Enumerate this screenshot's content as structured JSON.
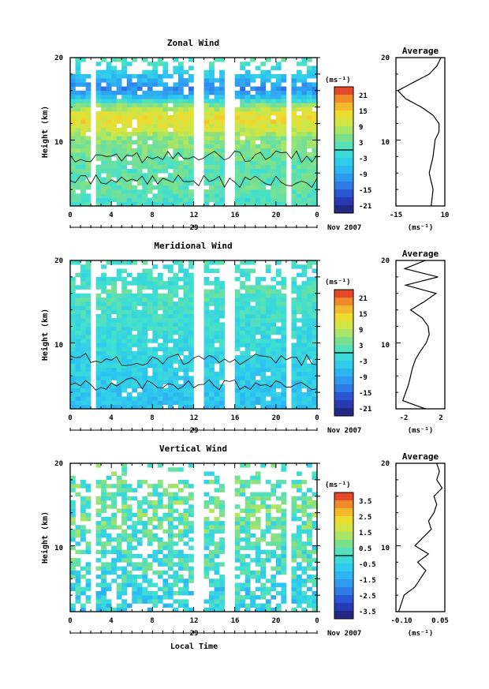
{
  "figure": {
    "date_label": "Nov 2007",
    "x_axis_title": "Local Time",
    "day_label": "29",
    "colorbar_unit": "(ms⁻¹)",
    "average_title": "Average",
    "average_unit": "(ms⁻¹)"
  },
  "panels": [
    {
      "title": "Zonal Wind",
      "ylabel": "Height (km)",
      "yticks": [
        "20",
        "10"
      ],
      "xticks": [
        "0",
        "4",
        "8",
        "12",
        "16",
        "20",
        "0"
      ],
      "colorbar_ticks": [
        "21",
        "15",
        "9",
        "3",
        "-3",
        "-9",
        "-15",
        "-21"
      ],
      "colorbar_range": [
        -24,
        24
      ],
      "avg_xticks": [
        "-15",
        "10"
      ]
    },
    {
      "title": "Meridional Wind",
      "ylabel": "Height (km)",
      "yticks": [
        "20",
        "10"
      ],
      "xticks": [
        "0",
        "4",
        "8",
        "12",
        "16",
        "20",
        "0"
      ],
      "colorbar_ticks": [
        "21",
        "15",
        "9",
        "3",
        "-3",
        "-9",
        "-15",
        "-21"
      ],
      "colorbar_range": [
        -24,
        24
      ],
      "avg_xticks": [
        "-2",
        "2"
      ]
    },
    {
      "title": "Vertical Wind",
      "ylabel": "Height (km)",
      "yticks": [
        "20",
        "10"
      ],
      "xticks": [
        "0",
        "4",
        "8",
        "12",
        "16",
        "20",
        "0"
      ],
      "colorbar_ticks": [
        "3.5",
        "2.5",
        "1.5",
        "0.5",
        "-0.5",
        "-1.5",
        "-2.5",
        "-3.5"
      ],
      "colorbar_range": [
        -4,
        4
      ],
      "avg_xticks": [
        "-0.10",
        "0.05"
      ]
    }
  ],
  "chart_data": [
    {
      "type": "heatmap",
      "title": "Zonal Wind",
      "xlabel": "",
      "ylabel": "Height (km)",
      "xlim": [
        0,
        24
      ],
      "ylim": [
        2,
        20
      ],
      "x_step_h": 0.5,
      "y_step_km": 0.5,
      "gaps_local_time_h": [
        2.0,
        12.0,
        12.5,
        15.0,
        15.5,
        21.0
      ],
      "profile_km": [
        2,
        4,
        6,
        8,
        10,
        11,
        12,
        13,
        14,
        15,
        16,
        17,
        18,
        19,
        20
      ],
      "profile_ms": [
        0,
        3,
        2,
        4,
        6,
        10,
        13,
        12,
        5,
        -6,
        -12,
        -8,
        -4,
        0,
        2
      ],
      "average": {
        "x_range": [
          -15,
          10
        ],
        "km": [
          2,
          4,
          6,
          8,
          10,
          11,
          12,
          13,
          14,
          15,
          16,
          17,
          18,
          19,
          20
        ],
        "ms": [
          3,
          4,
          2,
          4,
          5,
          7,
          7,
          4,
          -2,
          -10,
          -14,
          -6,
          2,
          6,
          8
        ]
      }
    },
    {
      "type": "heatmap",
      "title": "Meridional Wind",
      "xlabel": "",
      "ylabel": "Height (km)",
      "xlim": [
        0,
        24
      ],
      "ylim": [
        2,
        20
      ],
      "x_step_h": 0.5,
      "y_step_km": 0.5,
      "gaps_local_time_h": [
        2.0,
        12.0,
        12.5,
        15.0,
        15.5,
        21.0
      ],
      "profile_km": [
        2,
        4,
        6,
        8,
        10,
        12,
        14,
        15,
        16,
        17,
        18,
        19,
        20
      ],
      "profile_ms": [
        -6,
        -5,
        -4,
        -3,
        -2,
        -1,
        0,
        1,
        2,
        0,
        -1,
        1,
        0
      ],
      "average": {
        "x_range": [
          -2.5,
          2.5
        ],
        "km": [
          2,
          3,
          4,
          5,
          6,
          7,
          8,
          9,
          10,
          11,
          12,
          13,
          14,
          15,
          16,
          17,
          18,
          19,
          20
        ],
        "ms": [
          0.5,
          -1.8,
          -1.5,
          -1.2,
          -1.0,
          -0.8,
          -0.5,
          0.0,
          0.6,
          0.9,
          0.8,
          0.2,
          -1.0,
          0.4,
          1.6,
          -1.5,
          1.8,
          -1.6,
          0.5
        ]
      }
    },
    {
      "type": "heatmap",
      "title": "Vertical Wind",
      "xlabel": "Local Time",
      "ylabel": "Height (km)",
      "xlim": [
        0,
        24
      ],
      "ylim": [
        2,
        20
      ],
      "x_step_h": 0.5,
      "y_step_km": 0.5,
      "gaps_local_time_h": [
        2.0,
        12.0,
        12.5,
        15.0,
        15.5,
        21.0
      ],
      "profile_km": [
        2,
        4,
        6,
        8,
        10,
        12,
        14,
        16,
        18,
        20
      ],
      "profile_ms": [
        -0.6,
        -0.4,
        -0.2,
        0.0,
        0.1,
        0.3,
        0.5,
        0.4,
        0.3,
        0.2
      ],
      "average": {
        "x_range": [
          -0.12,
          0.06
        ],
        "km": [
          2,
          3,
          4,
          5,
          6,
          7,
          8,
          9,
          10,
          11,
          12,
          13,
          14,
          15,
          16,
          17,
          18,
          19,
          20
        ],
        "ms": [
          -0.11,
          -0.1,
          -0.09,
          -0.05,
          -0.03,
          -0.01,
          -0.04,
          0.0,
          -0.05,
          -0.02,
          0.01,
          0.0,
          0.02,
          0.03,
          0.02,
          0.05,
          0.03,
          0.04,
          0.03
        ]
      }
    }
  ]
}
